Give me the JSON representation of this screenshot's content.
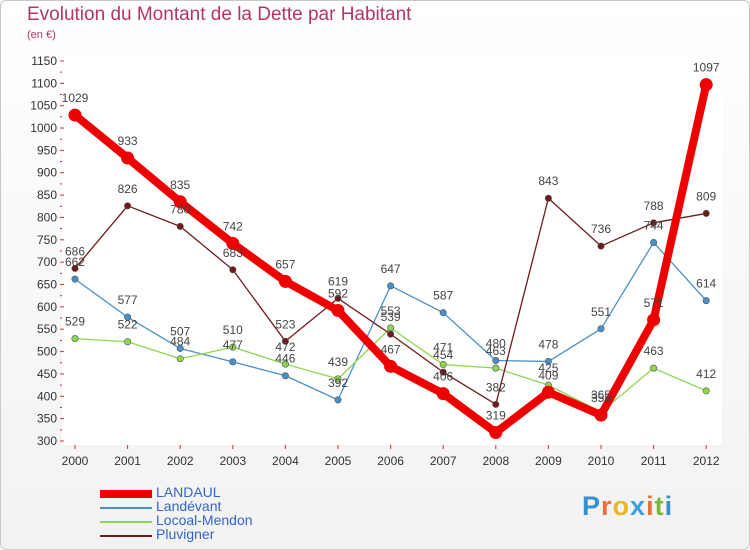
{
  "title": "Evolution du Montant de la Dette par Habitant",
  "subtitle": "(en €)",
  "logo": {
    "text": "Proxiti",
    "letters": [
      "P",
      "r",
      "o",
      "x",
      "i",
      "t",
      "i"
    ],
    "colors": [
      "#3a8fd1",
      "#e8703a",
      "#e8b72c",
      "#3aa0d8",
      "#e8703a",
      "#7cb839",
      "#3a8fd1"
    ]
  },
  "chart_data": {
    "type": "line",
    "title": "Evolution du Montant de la Dette par Habitant",
    "ylabel": "(en €)",
    "ylim": [
      300,
      1150
    ],
    "yticks": [
      300,
      350,
      400,
      450,
      500,
      550,
      600,
      650,
      700,
      750,
      800,
      850,
      900,
      950,
      1000,
      1050,
      1100,
      1150
    ],
    "x": [
      "2000",
      "2001",
      "2002",
      "2003",
      "2004",
      "2005",
      "2006",
      "2007",
      "2008",
      "2009",
      "2010",
      "2011",
      "2012"
    ],
    "grid": false,
    "legend": "bottom-left",
    "series": [
      {
        "name": "LANDAUL",
        "color": "#ee0000",
        "values": [
          1029,
          933,
          835,
          742,
          657,
          592,
          467,
          406,
          319,
          409,
          358,
          571,
          1097
        ]
      },
      {
        "name": "Landévant",
        "color": "#4a90c8",
        "values": [
          662,
          577,
          507,
          477,
          446,
          392,
          647,
          587,
          480,
          478,
          551,
          744,
          614
        ]
      },
      {
        "name": "Locoal-Mendon",
        "color": "#8fd650",
        "values": [
          529,
          522,
          484,
          510,
          472,
          439,
          553,
          471,
          463,
          425,
          365,
          463,
          412
        ]
      },
      {
        "name": "Pluvigner",
        "color": "#6e1a1a",
        "values": [
          686,
          826,
          780,
          683,
          523,
          619,
          539,
          454,
          382,
          843,
          736,
          788,
          809
        ]
      }
    ]
  }
}
